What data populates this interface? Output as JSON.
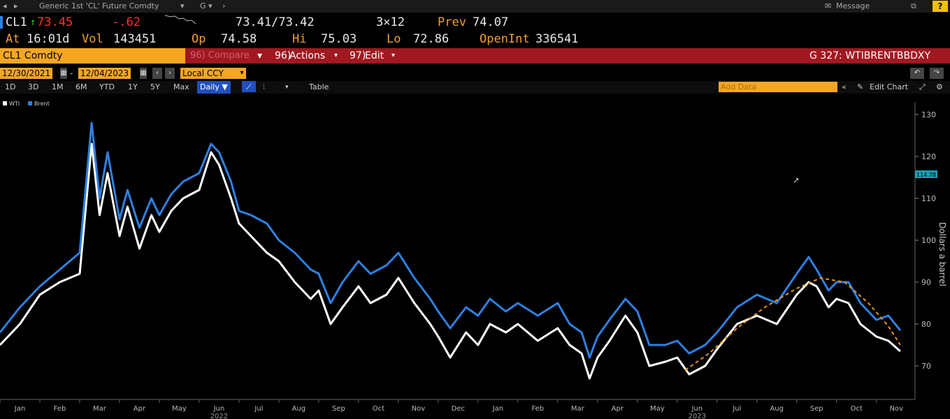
{
  "topbar": {
    "security_menu": "Generic 1st 'CL' Future Comdty",
    "g_menu": "G",
    "message": "Message",
    "help": "?"
  },
  "quote": {
    "ticker": "CL1",
    "last": "73.45",
    "change": "-.62",
    "bid_ask": "73.41/73.42",
    "size": "3×12",
    "prev_label": "Prev",
    "prev": "74.07",
    "at_label": "At",
    "at_time": "16:01d",
    "vol_label": "Vol",
    "vol": "143451",
    "op_label": "Op",
    "op": "74.58",
    "hi_label": "Hi",
    "hi": "75.03",
    "lo_label": "Lo",
    "lo": "72.86",
    "openint_label": "OpenInt",
    "openint": "336541"
  },
  "tickerbar": {
    "security": "CL1 Comdty",
    "compare": "96) Compare",
    "actions_num": "96)",
    "actions": "Actions",
    "edit_num": "97)",
    "edit": "Edit",
    "graph_id": "G 327: WTIBRENTBBDXY"
  },
  "datebar": {
    "start_date": "12/30/2021",
    "end_date": "12/04/2023",
    "currency": "Local CCY"
  },
  "periodbar": {
    "periods": [
      "1D",
      "3D",
      "1M",
      "6M",
      "YTD",
      "1Y",
      "5Y",
      "Max"
    ],
    "frequency": "Daily ▼",
    "table": "Table",
    "add_data": "Add Data",
    "edit_chart": "Edit Chart"
  },
  "chart_data": {
    "type": "line",
    "ylabel": "Dollars a barrel",
    "ylim": [
      63,
      133
    ],
    "yticks": [
      70,
      80,
      90,
      100,
      110,
      120,
      130
    ],
    "x_month_labels": [
      "Jan",
      "Feb",
      "Mar",
      "Apr",
      "May",
      "Jun",
      "Jul",
      "Aug",
      "Sep",
      "Oct",
      "Nov",
      "Dec",
      "Jan",
      "Feb",
      "Mar",
      "Apr",
      "May",
      "Jun",
      "Jul",
      "Aug",
      "Sep",
      "Oct",
      "Nov"
    ],
    "year_labels": [
      "2022",
      "2023"
    ],
    "legend": [
      "WTI",
      "Brent"
    ],
    "legend_position": "top-left",
    "last_price_tag": "114.78",
    "series": [
      {
        "name": "WTI",
        "color": "#ffffff",
        "points": [
          [
            0,
            75
          ],
          [
            0.5,
            80
          ],
          [
            1,
            87
          ],
          [
            1.5,
            90
          ],
          [
            2,
            92
          ],
          [
            2.3,
            123
          ],
          [
            2.5,
            106
          ],
          [
            2.7,
            116
          ],
          [
            3,
            101
          ],
          [
            3.2,
            108
          ],
          [
            3.5,
            98
          ],
          [
            3.8,
            106
          ],
          [
            4,
            102
          ],
          [
            4.3,
            107
          ],
          [
            4.6,
            110
          ],
          [
            5,
            112
          ],
          [
            5.3,
            121
          ],
          [
            5.5,
            118
          ],
          [
            5.8,
            110
          ],
          [
            6,
            104
          ],
          [
            6.3,
            101
          ],
          [
            6.7,
            97
          ],
          [
            7,
            95
          ],
          [
            7.4,
            90
          ],
          [
            7.8,
            86
          ],
          [
            8,
            88
          ],
          [
            8.3,
            80
          ],
          [
            8.6,
            84
          ],
          [
            9,
            89
          ],
          [
            9.3,
            85
          ],
          [
            9.7,
            87
          ],
          [
            10,
            91
          ],
          [
            10.4,
            85
          ],
          [
            10.8,
            80
          ],
          [
            11,
            77
          ],
          [
            11.3,
            72
          ],
          [
            11.7,
            78
          ],
          [
            12,
            75
          ],
          [
            12.3,
            80
          ],
          [
            12.7,
            78
          ],
          [
            13,
            80
          ],
          [
            13.5,
            76
          ],
          [
            14,
            79
          ],
          [
            14.3,
            75
          ],
          [
            14.6,
            73
          ],
          [
            14.8,
            67
          ],
          [
            15,
            72
          ],
          [
            15.3,
            76
          ],
          [
            15.7,
            82
          ],
          [
            16,
            78
          ],
          [
            16.3,
            70
          ],
          [
            16.7,
            71
          ],
          [
            17,
            72
          ],
          [
            17.3,
            68
          ],
          [
            17.7,
            70
          ],
          [
            18,
            74
          ],
          [
            18.5,
            80
          ],
          [
            19,
            82
          ],
          [
            19.5,
            80
          ],
          [
            20,
            87
          ],
          [
            20.3,
            90
          ],
          [
            20.5,
            89
          ],
          [
            20.8,
            84
          ],
          [
            21,
            86
          ],
          [
            21.3,
            85
          ],
          [
            21.6,
            80
          ],
          [
            22,
            77
          ],
          [
            22.3,
            76
          ],
          [
            22.6,
            73.5
          ]
        ]
      },
      {
        "name": "Brent",
        "color": "#2f80e0",
        "points": [
          [
            0,
            78
          ],
          [
            0.5,
            84
          ],
          [
            1,
            89
          ],
          [
            1.5,
            93
          ],
          [
            2,
            97
          ],
          [
            2.3,
            128
          ],
          [
            2.5,
            110
          ],
          [
            2.7,
            121
          ],
          [
            3,
            105
          ],
          [
            3.2,
            112
          ],
          [
            3.5,
            103
          ],
          [
            3.8,
            110
          ],
          [
            4,
            106
          ],
          [
            4.3,
            111
          ],
          [
            4.6,
            114
          ],
          [
            5,
            116
          ],
          [
            5.3,
            123
          ],
          [
            5.5,
            121
          ],
          [
            5.8,
            114
          ],
          [
            6,
            107
          ],
          [
            6.3,
            106
          ],
          [
            6.7,
            104
          ],
          [
            7,
            100
          ],
          [
            7.4,
            97
          ],
          [
            7.8,
            93
          ],
          [
            8,
            92
          ],
          [
            8.3,
            85
          ],
          [
            8.6,
            90
          ],
          [
            9,
            95
          ],
          [
            9.3,
            92
          ],
          [
            9.7,
            94
          ],
          [
            10,
            97
          ],
          [
            10.4,
            91
          ],
          [
            10.8,
            86
          ],
          [
            11,
            83
          ],
          [
            11.3,
            79
          ],
          [
            11.7,
            84
          ],
          [
            12,
            82
          ],
          [
            12.3,
            86
          ],
          [
            12.7,
            83
          ],
          [
            13,
            85
          ],
          [
            13.5,
            82
          ],
          [
            14,
            85
          ],
          [
            14.3,
            80
          ],
          [
            14.6,
            78
          ],
          [
            14.8,
            72
          ],
          [
            15,
            77
          ],
          [
            15.3,
            81
          ],
          [
            15.7,
            86
          ],
          [
            16,
            83
          ],
          [
            16.3,
            75
          ],
          [
            16.7,
            75
          ],
          [
            17,
            76
          ],
          [
            17.3,
            73
          ],
          [
            17.7,
            75
          ],
          [
            18,
            78
          ],
          [
            18.5,
            84
          ],
          [
            19,
            87
          ],
          [
            19.5,
            85
          ],
          [
            20,
            92
          ],
          [
            20.3,
            96
          ],
          [
            20.5,
            93
          ],
          [
            20.8,
            88
          ],
          [
            21,
            90
          ],
          [
            21.3,
            90
          ],
          [
            21.6,
            85
          ],
          [
            22,
            81
          ],
          [
            22.3,
            82
          ],
          [
            22.6,
            78.5
          ]
        ]
      },
      {
        "name": "",
        "color": "#e8901c",
        "style": "dashed",
        "points": [
          [
            17.2,
            69
          ],
          [
            17.8,
            73
          ],
          [
            18.5,
            79
          ],
          [
            19.2,
            84
          ],
          [
            20,
            88.5
          ],
          [
            20.6,
            91
          ],
          [
            21.2,
            90
          ],
          [
            21.8,
            85
          ],
          [
            22.3,
            79.5
          ],
          [
            22.6,
            75
          ]
        ]
      }
    ]
  }
}
